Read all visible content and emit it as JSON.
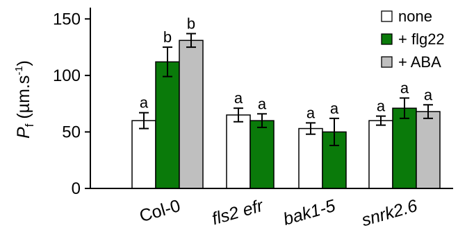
{
  "chart_data": {
    "type": "bar",
    "categories": [
      "Col-0",
      "fls2 efr",
      "bak1-5",
      "snrk2.6"
    ],
    "category_italic": [
      false,
      true,
      true,
      true
    ],
    "ylabel": {
      "symbol": "P",
      "subscript": "f",
      "unit_prefix": " (µm.s",
      "unit_sup": "-1",
      "unit_suffix": ")"
    },
    "ylim": [
      0,
      160
    ],
    "yticks": [
      0,
      50,
      100,
      150
    ],
    "legend": {
      "position": "top-right"
    },
    "series": [
      {
        "name": "none",
        "color": "#ffffff",
        "values": [
          60,
          65,
          53,
          60
        ],
        "errors": [
          7,
          6,
          5,
          4
        ],
        "letters": [
          "a",
          "a",
          "a",
          "a"
        ]
      },
      {
        "name": "+ flg22",
        "color": "#0a7a0a",
        "values": [
          112,
          60,
          50,
          71
        ],
        "errors": [
          13,
          6,
          12,
          9
        ],
        "letters": [
          "b",
          "a",
          "a",
          "a"
        ]
      },
      {
        "name": "+ ABA",
        "color": "#bfbfbf",
        "values": [
          131,
          null,
          null,
          68
        ],
        "errors": [
          6,
          null,
          null,
          6
        ],
        "letters": [
          "b",
          null,
          null,
          "a"
        ]
      }
    ]
  }
}
